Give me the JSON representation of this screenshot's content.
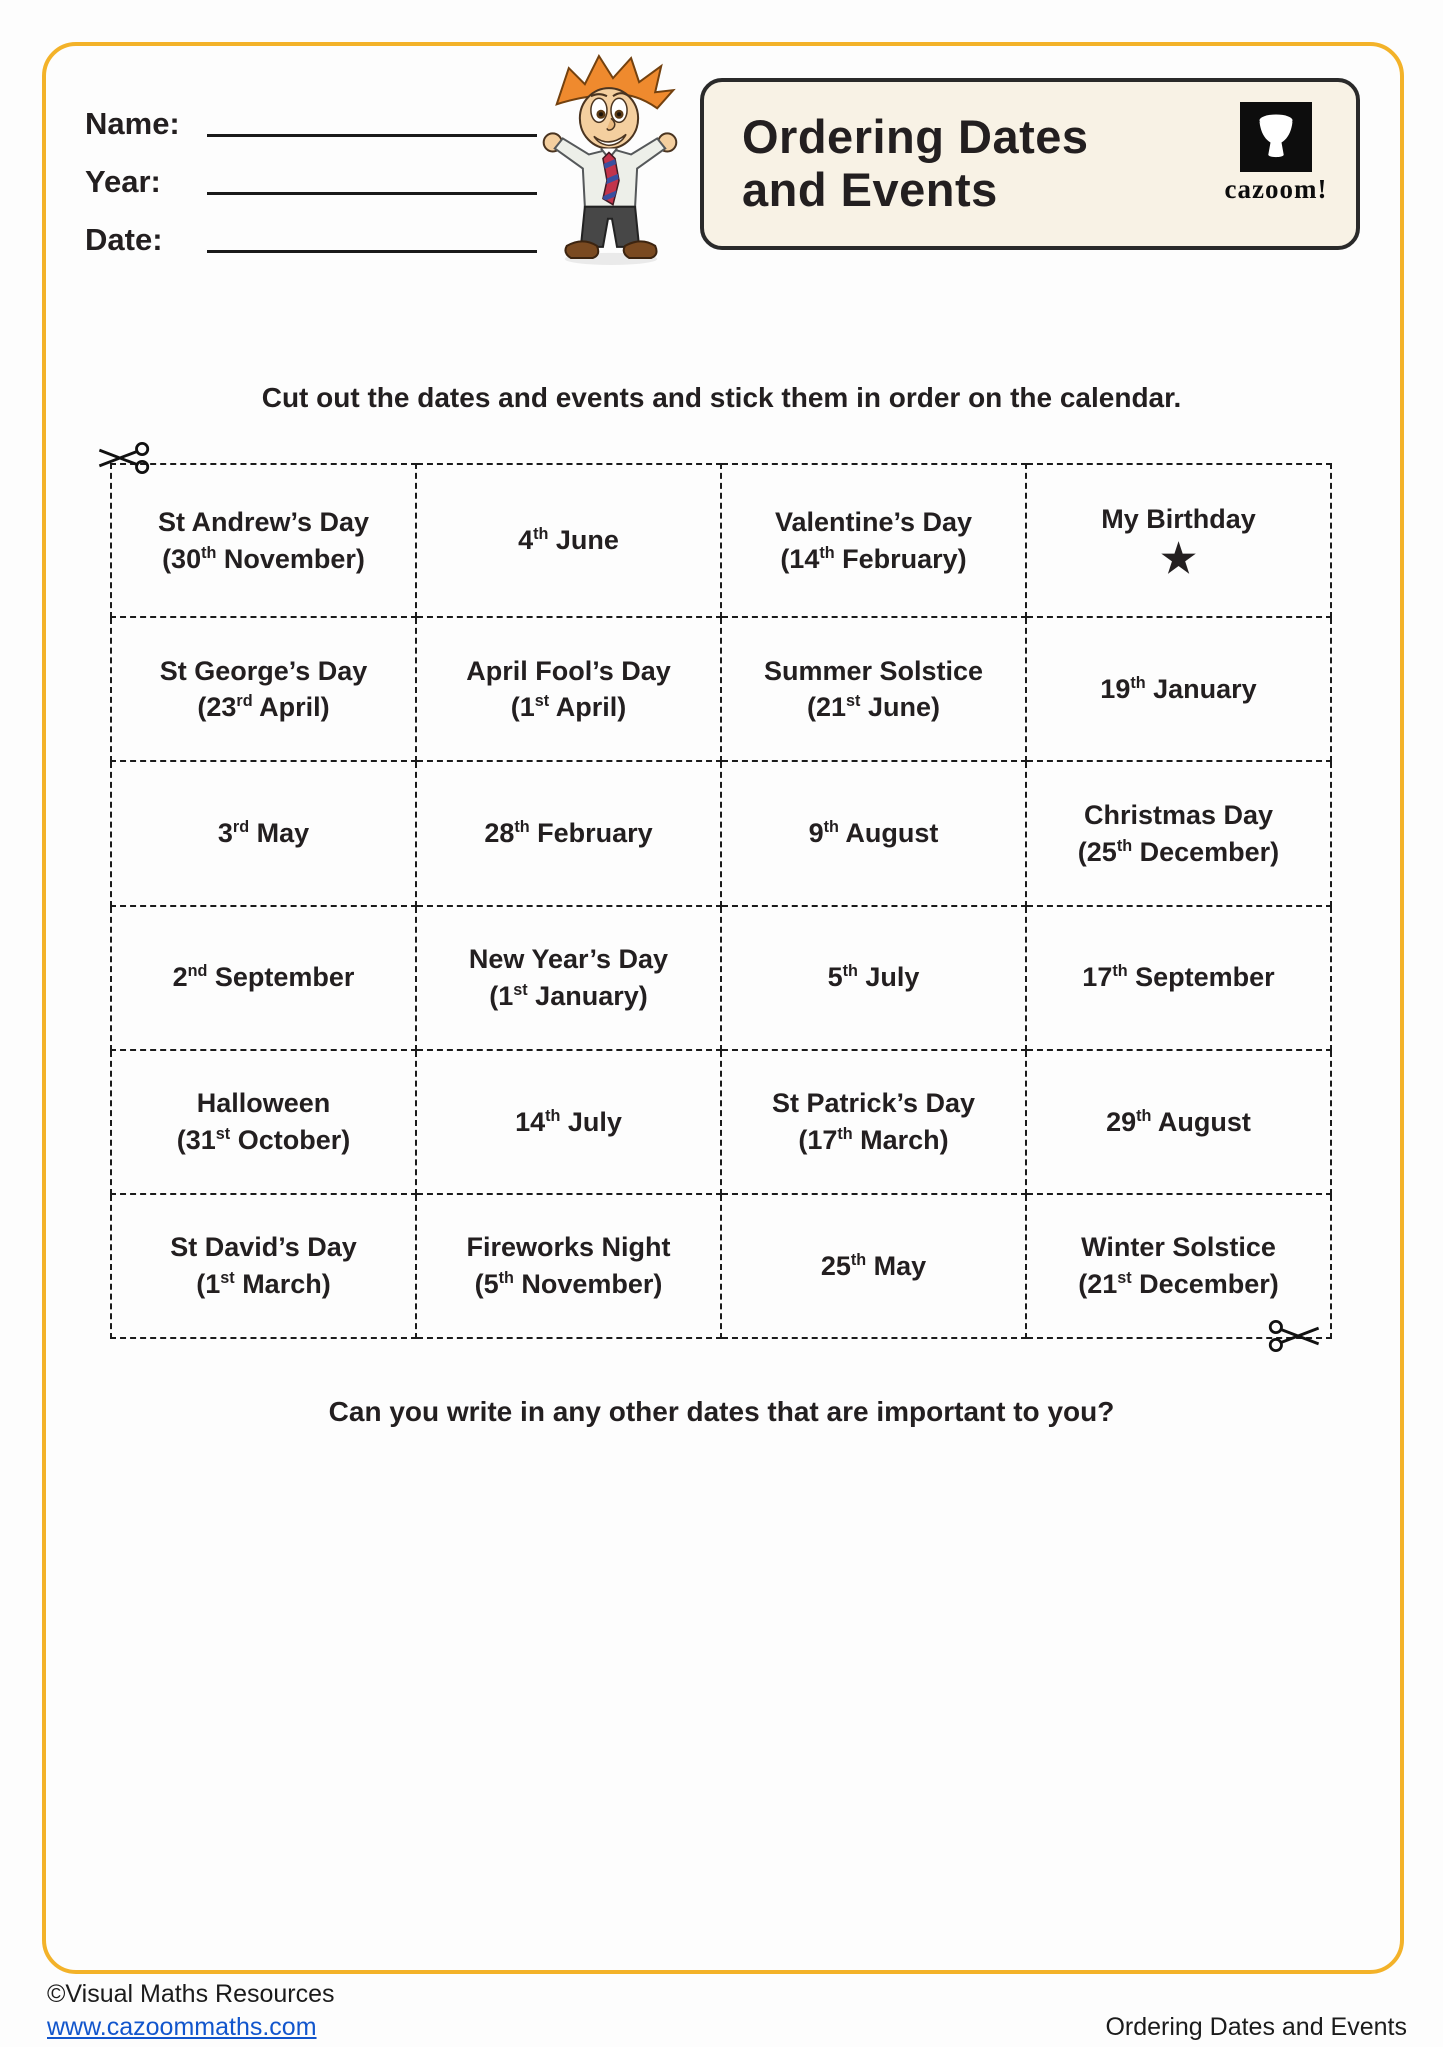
{
  "header": {
    "fields": [
      {
        "label": "Name:"
      },
      {
        "label": "Year:"
      },
      {
        "label": "Date:"
      }
    ],
    "title_lines": [
      "Ordering Dates",
      "and Events"
    ],
    "logo_text": "cazoom!"
  },
  "instruction": "Cut out the dates and events and stick them in order on the calendar.",
  "grid": {
    "rows": [
      [
        {
          "lines": [
            "St Andrew’s Day",
            "(30{th} November)"
          ]
        },
        {
          "lines": [
            "4{th} June"
          ]
        },
        {
          "lines": [
            "Valentine’s Day",
            "(14{th} February)"
          ]
        },
        {
          "lines": [
            "My Birthday"
          ],
          "star": true
        }
      ],
      [
        {
          "lines": [
            "St George’s Day",
            "(23{rd} April)"
          ]
        },
        {
          "lines": [
            "April Fool’s Day",
            "(1{st} April)"
          ]
        },
        {
          "lines": [
            "Summer Solstice",
            "(21{st} June)"
          ]
        },
        {
          "lines": [
            "19{th} January"
          ]
        }
      ],
      [
        {
          "lines": [
            "3{rd} May"
          ]
        },
        {
          "lines": [
            "28{th} February"
          ]
        },
        {
          "lines": [
            "9{th} August"
          ]
        },
        {
          "lines": [
            "Christmas Day",
            "(25{th} December)"
          ]
        }
      ],
      [
        {
          "lines": [
            "2{nd} September"
          ]
        },
        {
          "lines": [
            "New Year’s Day",
            "(1{st} January)"
          ]
        },
        {
          "lines": [
            "5{th} July"
          ]
        },
        {
          "lines": [
            "17{th} September"
          ]
        }
      ],
      [
        {
          "lines": [
            "Halloween",
            "(31{st} October)"
          ]
        },
        {
          "lines": [
            "14{th} July"
          ]
        },
        {
          "lines": [
            "St Patrick’s Day",
            "(17{th} March)"
          ]
        },
        {
          "lines": [
            "29{th} August"
          ]
        }
      ],
      [
        {
          "lines": [
            "St David’s Day",
            "(1{st} March)"
          ]
        },
        {
          "lines": [
            "Fireworks Night",
            "(5{th} November)"
          ]
        },
        {
          "lines": [
            "25{th} May"
          ]
        },
        {
          "lines": [
            "Winter Solstice",
            "(21{st} December)"
          ]
        }
      ]
    ]
  },
  "question": "Can you write in any other dates that are important to you?",
  "footer": {
    "copyright": "©Visual Maths Resources",
    "link": "www.cazoommaths.com",
    "right": "Ordering Dates and Events"
  },
  "icons": {
    "star": "★",
    "scissors": "✂"
  },
  "colors": {
    "frame_yellow": "#F3B229",
    "title_box_bg": "#F8F2E5",
    "text": "#231F20",
    "link_blue": "#1155CC"
  }
}
